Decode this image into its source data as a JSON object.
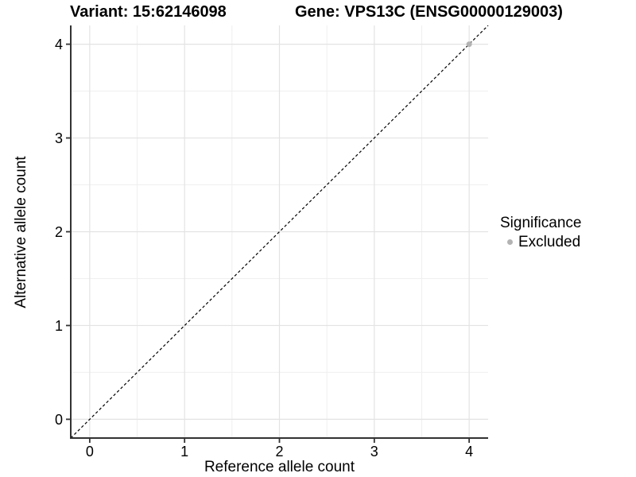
{
  "titles": {
    "variant": "Variant: 15:62146098",
    "gene": "Gene: VPS13C (ENSG00000129003)"
  },
  "axes": {
    "x": {
      "title": "Reference allele count",
      "tick_labels": [
        "0",
        "1",
        "2",
        "3",
        "4"
      ]
    },
    "y": {
      "title": "Alternative allele count",
      "tick_labels": [
        "0",
        "1",
        "2",
        "3",
        "4"
      ]
    }
  },
  "legend": {
    "title": "Significance",
    "entries": [
      {
        "label": "Excluded",
        "color": "#b3b3b3"
      }
    ]
  },
  "colors": {
    "background": "#ffffff",
    "grid_major": "#e3e3e3",
    "grid_minor": "#efefef",
    "axis": "#333333",
    "tick_text": "#000000",
    "reference_line": "#000000"
  },
  "chart_data": {
    "type": "scatter",
    "title": "Variant: 15:62146098   Gene: VPS13C (ENSG00000129003)",
    "xlabel": "Reference allele count",
    "ylabel": "Alternative allele count",
    "xlim": [
      -0.2,
      4.2
    ],
    "ylim": [
      -0.2,
      4.2
    ],
    "xticks": [
      0,
      1,
      2,
      3,
      4
    ],
    "yticks": [
      0,
      1,
      2,
      3,
      4
    ],
    "xticks_minor": [
      0.5,
      1.5,
      2.5,
      3.5
    ],
    "yticks_minor": [
      0.5,
      1.5,
      2.5,
      3.5
    ],
    "grid": true,
    "legend_position": "right",
    "series": [
      {
        "name": "Excluded",
        "color": "#b3b3b3",
        "points": [
          {
            "x": 4,
            "y": 4
          }
        ]
      }
    ],
    "reference_line": {
      "equation": "y = x",
      "style": "dashed",
      "color": "#000000"
    }
  }
}
